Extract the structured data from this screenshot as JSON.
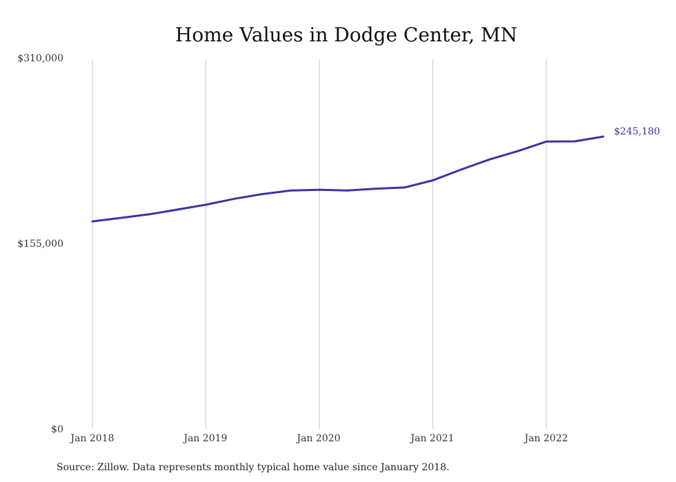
{
  "chart_data": {
    "type": "line",
    "title": "Home Values in Dodge Center, MN",
    "xlabel": "",
    "ylabel": "",
    "ylim": [
      0,
      310000
    ],
    "y_ticks": [
      "$310,000",
      "$155,000",
      "$0"
    ],
    "y_tick_values": [
      310000,
      155000,
      0
    ],
    "x_ticks": [
      "Jan 2018",
      "Jan 2019",
      "Jan 2020",
      "Jan 2021",
      "Jan 2022"
    ],
    "x_tick_values": [
      "2018-01",
      "2019-01",
      "2020-01",
      "2021-01",
      "2022-01"
    ],
    "grid": "vertical",
    "line_color": "#3a35a0",
    "series": [
      {
        "x": [
          "2018-01",
          "2018-04",
          "2018-07",
          "2018-10",
          "2019-01",
          "2019-04",
          "2019-07",
          "2019-10",
          "2020-01",
          "2020-04",
          "2020-07",
          "2020-10",
          "2021-01",
          "2021-04",
          "2021-07",
          "2021-10",
          "2022-01",
          "2022-04",
          "2022-07"
        ],
        "values": [
          174000,
          177000,
          180000,
          184000,
          188000,
          193000,
          197000,
          200000,
          200500,
          200000,
          201500,
          202500,
          208500,
          217500,
          226000,
          233000,
          241000,
          241200,
          245180
        ]
      }
    ],
    "end_label": "$245,180",
    "source": "Source: Zillow. Data represents monthly typical home value since January 2018."
  }
}
